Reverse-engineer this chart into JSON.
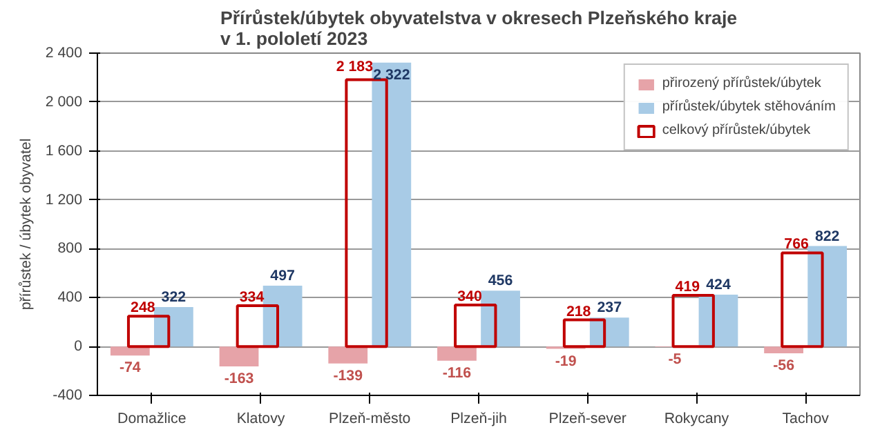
{
  "chart_data": {
    "type": "bar",
    "title": "Přírůstek/úbytek obyvatelstva v okresech Plzeňského kraje\nv 1. pololetí 2023",
    "ylabel": "přírůstek / úbytek obyvatel",
    "categories": [
      "Domažlice",
      "Klatovy",
      "Plzeň-město",
      "Plzeň-jih",
      "Plzeň-sever",
      "Rokycany",
      "Tachov"
    ],
    "series": [
      {
        "name": "přirozený přírůstek/úbytek",
        "color": "#e6a3a8",
        "values": [
          -74,
          -163,
          -139,
          -116,
          -19,
          -5,
          -56
        ]
      },
      {
        "name": "přírůstek/úbytek stěhováním",
        "color": "#a8cbe6",
        "values": [
          322,
          497,
          2322,
          456,
          237,
          424,
          822
        ]
      },
      {
        "name": "celkový přírůstek/úbytek",
        "color": "#c00000",
        "values": [
          248,
          334,
          2183,
          340,
          218,
          419,
          766
        ]
      }
    ],
    "ylim": [
      -400,
      2400
    ],
    "yticks": [
      {
        "value": -400,
        "label": "-400"
      },
      0,
      400,
      800,
      {
        "value": 1200,
        "label": "1 200"
      },
      {
        "value": 1600,
        "label": "1 600"
      },
      {
        "value": 2000,
        "label": "2 000"
      },
      {
        "value": 2400,
        "label": "2 400"
      }
    ],
    "grid": "y",
    "legend": "top right",
    "data_labels": true
  }
}
